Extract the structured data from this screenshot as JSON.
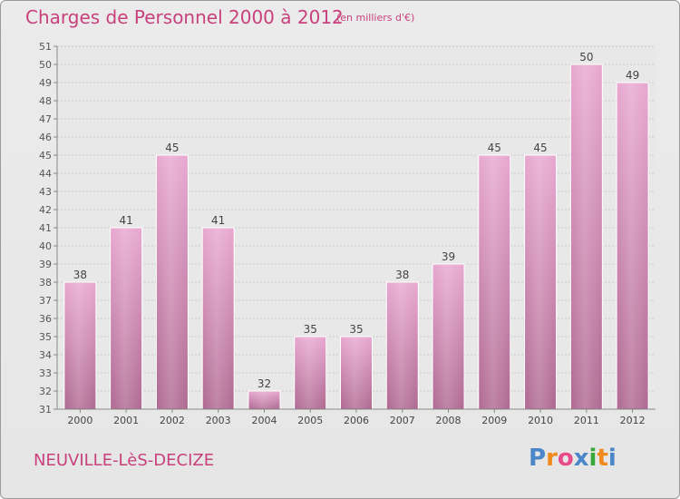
{
  "header": {
    "title": "Charges de Personnel 2000 à 2012",
    "subtitle": "(en milliers d'€)"
  },
  "footer": {
    "town": "NEUVILLE-LèS-DECIZE",
    "logo_text": "Proxiti"
  },
  "colors": {
    "title": "#c8417c",
    "bar_top": "#e8a8d0",
    "bar_bottom": "#b06a92",
    "logo_letters": [
      "#4a86c8",
      "#f08a1c",
      "#e84a8a",
      "#4a86c8",
      "#38a838",
      "#f08a1c",
      "#4a86c8"
    ]
  },
  "chart_data": {
    "type": "bar",
    "title": "Charges de Personnel 2000 à 2012",
    "subtitle": "(en milliers d'€)",
    "categories": [
      "2000",
      "2001",
      "2002",
      "2003",
      "2004",
      "2005",
      "2006",
      "2007",
      "2008",
      "2009",
      "2010",
      "2011",
      "2012"
    ],
    "values": [
      38,
      41,
      45,
      41,
      32,
      35,
      35,
      38,
      39,
      45,
      45,
      50,
      49
    ],
    "ylim": [
      31,
      51
    ],
    "yticks": [
      31,
      32,
      33,
      34,
      35,
      36,
      37,
      38,
      39,
      40,
      41,
      42,
      43,
      44,
      45,
      46,
      47,
      48,
      49,
      50,
      51
    ],
    "grid": true,
    "data_labels": true
  }
}
